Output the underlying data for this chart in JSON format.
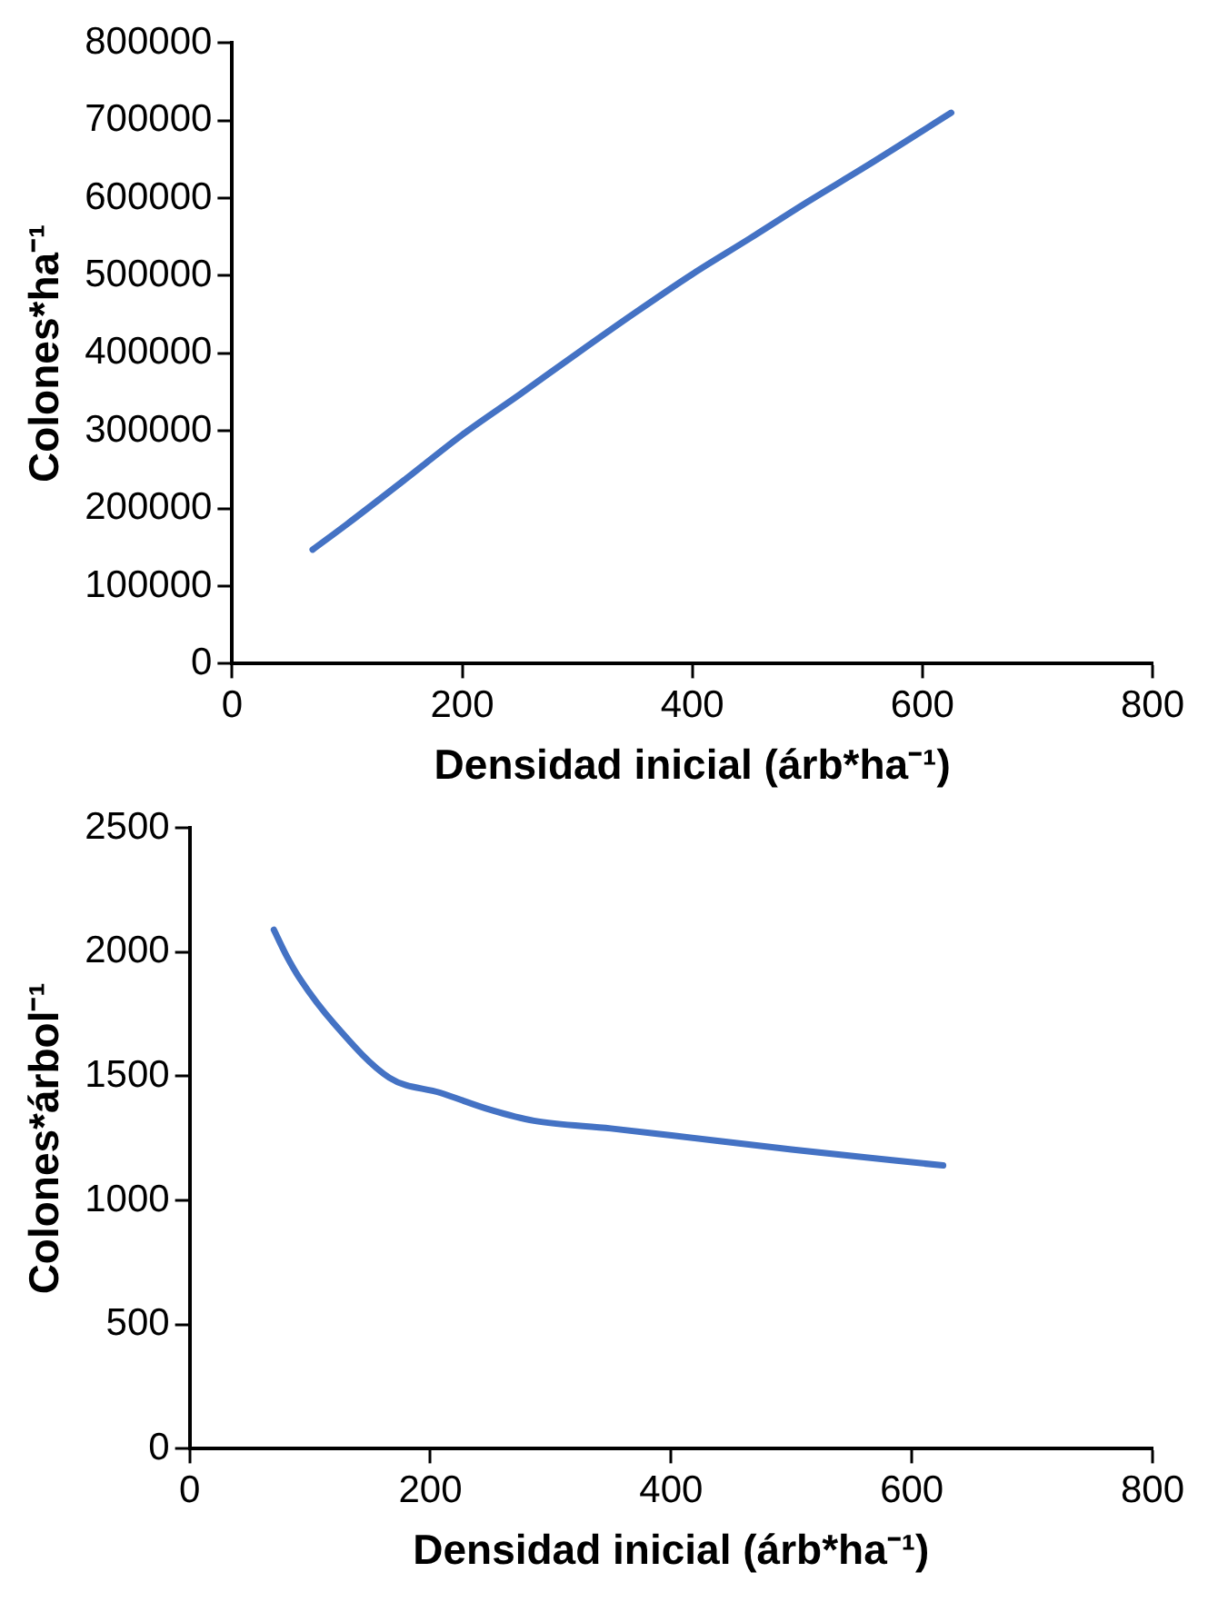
{
  "chart_data": [
    {
      "type": "line",
      "xlabel": "Densidad inicial (árb*ha⁻¹)",
      "ylabel": "Colones*ha⁻¹",
      "x": [
        70,
        100,
        150,
        200,
        250,
        300,
        350,
        400,
        450,
        500,
        550,
        625
      ],
      "series": [
        {
          "color": "#4472c4",
          "values": [
            147000,
            180000,
            237000,
            295000,
            347000,
            400000,
            452000,
            502000,
            548000,
            595000,
            640000,
            710000
          ]
        }
      ],
      "xlim": [
        0,
        800
      ],
      "xticks": [
        0,
        200,
        400,
        600,
        800
      ],
      "ylim": [
        0,
        800000
      ],
      "yticks": [
        0,
        100000,
        200000,
        300000,
        400000,
        500000,
        600000,
        700000,
        800000
      ],
      "grid": false,
      "legend": false,
      "marker": "none",
      "line_style": "solid"
    },
    {
      "type": "line",
      "xlabel": "Densidad inicial (árb*ha⁻¹)",
      "ylabel": "Colones*árbol⁻¹",
      "x": [
        70,
        80,
        92,
        120,
        166,
        208,
        250,
        286,
        350,
        402,
        500,
        626
      ],
      "series": [
        {
          "color": "#4472c4",
          "values": [
            2090,
            1990,
            1890,
            1712,
            1494,
            1434,
            1365,
            1321,
            1290,
            1261,
            1205,
            1141
          ]
        }
      ],
      "xlim": [
        0,
        800
      ],
      "xticks": [
        0,
        200,
        400,
        600,
        800
      ],
      "ylim": [
        0,
        2500
      ],
      "yticks": [
        0,
        500,
        1000,
        1500,
        2000,
        2500
      ],
      "grid": false,
      "legend": false,
      "marker": "none",
      "line_style": "solid"
    }
  ]
}
